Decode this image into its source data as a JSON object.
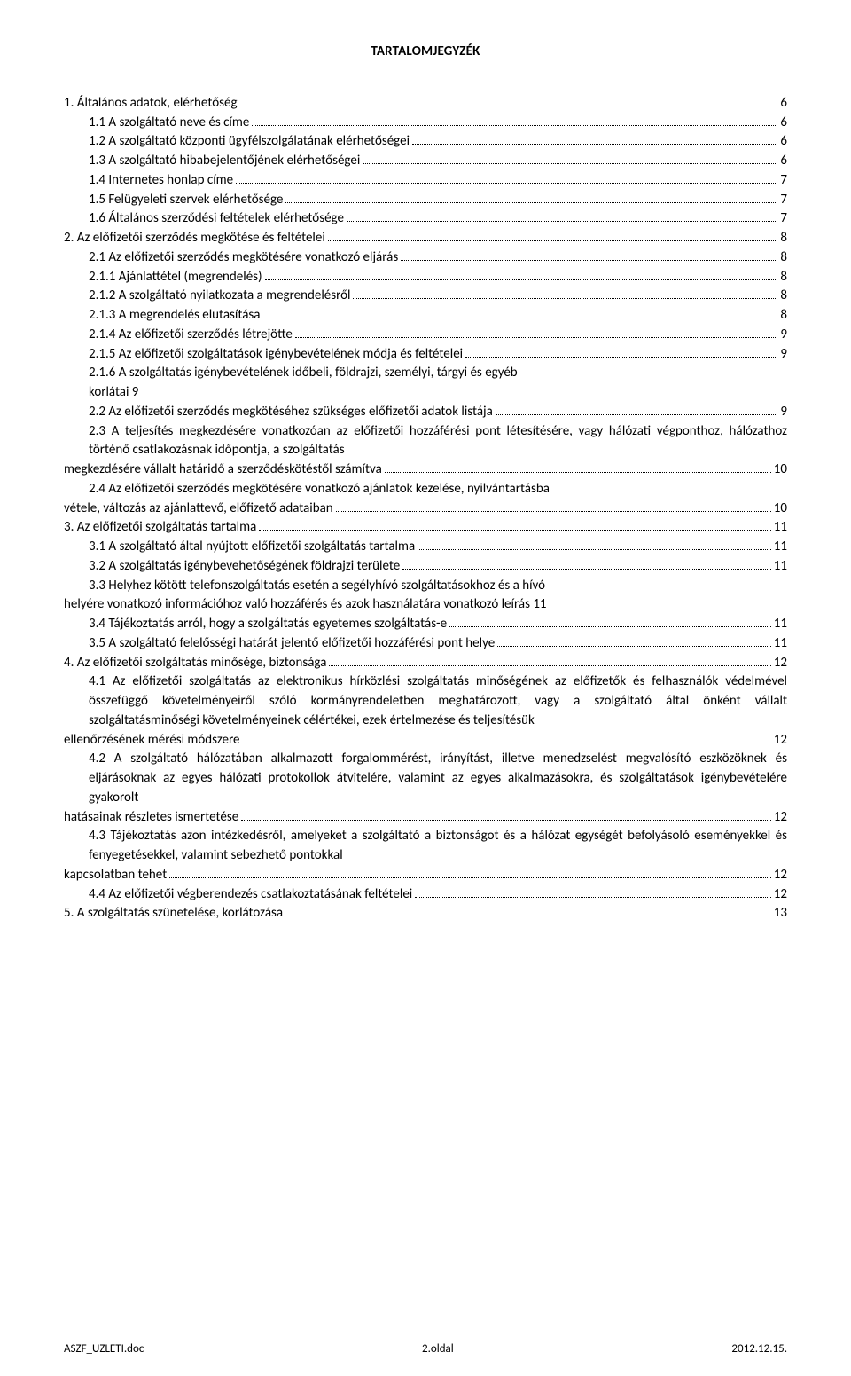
{
  "title": "TARTALOMJEGYZÉK",
  "footer": {
    "left": "ASZF_UZLETI.doc",
    "center": "2.oldal",
    "right": "2012.12.15."
  },
  "toc": [
    {
      "indent": 0,
      "text": "1. Általános adatok, elérhetőség",
      "page": "6"
    },
    {
      "indent": 1,
      "text": "1.1    A szolgáltató neve és címe",
      "page": "6"
    },
    {
      "indent": 1,
      "text": "1.2    A szolgáltató központi ügyfélszolgálatának elérhetőségei",
      "page": "6"
    },
    {
      "indent": 1,
      "text": "1.3    A szolgáltató hibabejelentőjének elérhetőségei",
      "page": "6"
    },
    {
      "indent": 1,
      "text": "1.4    Internetes honlap címe",
      "page": "7"
    },
    {
      "indent": 1,
      "text": "1.5    Felügyeleti szervek elérhetősége",
      "page": "7"
    },
    {
      "indent": 1,
      "text": "1.6    Általános szerződési feltételek elérhetősége",
      "page": "7"
    },
    {
      "indent": 0,
      "text": "2. Az előfizetői szerződés megkötése és feltételei",
      "page": "8"
    },
    {
      "indent": 1,
      "text": "2.1    Az előfizetői szerződés megkötésére vonatkozó eljárás",
      "page": "8"
    },
    {
      "indent": 2,
      "text": "2.1.1     Ajánlattétel (megrendelés)",
      "page": "8"
    },
    {
      "indent": 2,
      "text": "2.1.2     A szolgáltató nyilatkozata a megrendelésről",
      "page": "8"
    },
    {
      "indent": 2,
      "text": "2.1.3     A megrendelés elutasítása",
      "page": "8"
    },
    {
      "indent": 2,
      "text": "2.1.4     Az előfizetői szerződés létrejötte",
      "page": "9"
    },
    {
      "indent": 2,
      "text": "2.1.5     Az előfizetői szolgáltatások igénybevételének módja és feltételei",
      "page": "9"
    },
    {
      "indent": 2,
      "text": "2.1.6     A szolgáltatás igénybevételének időbeli, földrajzi, személyi, tárgyi és egyéb",
      "nowrap_tail": "korlátai   9",
      "page": null
    },
    {
      "indent": 1,
      "text": "2.2    Az előfizetői szerződés megkötéséhez szükséges előfizetői adatok listája",
      "page": "9"
    },
    {
      "indent": 1,
      "pre": "2.3    A teljesítés megkezdésére vonatkozóan az előfizetői hozzáférési pont létesítésére, vagy hálózati végponthoz, hálózathoz történő csatlakozásnak időpontja, a szolgáltatás",
      "text": "megkezdésére vállalt határidő a szerződéskötéstől számítva",
      "page": "10",
      "pre_indent": 1,
      "cont_indent": 0
    },
    {
      "indent": 1,
      "pre": "2.4    Az előfizetői szerződés megkötésére vonatkozó ajánlatok kezelése, nyilvántartásba",
      "text": "vétele, változás az ajánlattevő, előfizető adataiban",
      "page": "10",
      "pre_indent": 1,
      "cont_indent": 0
    },
    {
      "indent": 0,
      "text": "3. Az előfizetői szolgáltatás tartalma",
      "page": "11"
    },
    {
      "indent": 1,
      "text": "3.1    A szolgáltató által nyújtott előfizetői szolgáltatás tartalma",
      "page": "11"
    },
    {
      "indent": 1,
      "text": "3.2    A szolgáltatás igénybevehetőségének földrajzi területe",
      "page": "11"
    },
    {
      "indent": 1,
      "pre": "3.3    Helyhez kötött telefonszolgáltatás esetén a segélyhívó szolgáltatásokhoz és a hívó",
      "text": "helyére vonatkozó információhoz való hozzáférés és azok használatára vonatkozó leírás 11",
      "page": null,
      "pre_indent": 1,
      "cont_indent": 0
    },
    {
      "indent": 1,
      "text": "3.4    Tájékoztatás arról, hogy a szolgáltatás egyetemes szolgáltatás-e",
      "page": "11"
    },
    {
      "indent": 1,
      "text": "3.5    A szolgáltató felelősségi határát jelentő előfizetői hozzáférési pont helye",
      "page": "11"
    },
    {
      "indent": 0,
      "text": "4. Az előfizetői szolgáltatás minősége, biztonsága",
      "page": "12"
    },
    {
      "indent": 1,
      "pre": "4.1    Az előfizetői szolgáltatás az elektronikus hírközlési szolgáltatás minőségének az előfizetők és felhasználók védelmével összefüggő követelményeiről szóló kormányrendeletben meghatározott, vagy a szolgáltató által önként vállalt szolgáltatásminőségi követelményeinek célértékei, ezek értelmezése és teljesítésük",
      "text": "ellenőrzésének mérési módszere",
      "page": "12",
      "pre_indent": 1,
      "cont_indent": 0
    },
    {
      "indent": 1,
      "pre": "4.2    A szolgáltató hálózatában alkalmazott forgalommérést, irányítást, illetve menedzselést megvalósító eszközöknek és eljárásoknak az egyes hálózati protokollok átvitelére, valamint az egyes alkalmazásokra, és szolgáltatások igénybevételére gyakorolt",
      "text": "hatásainak részletes ismertetése",
      "page": "12",
      "pre_indent": 1,
      "cont_indent": 0
    },
    {
      "indent": 1,
      "pre": "4.3    Tájékoztatás azon intézkedésről, amelyeket a szolgáltató a biztonságot és a hálózat egységét befolyásoló eseményekkel és fenyegetésekkel, valamint sebezhető pontokkal",
      "text": "kapcsolatban tehet",
      "page": "12",
      "pre_indent": 1,
      "cont_indent": 0
    },
    {
      "indent": 1,
      "text": "4.4    Az előfizetői végberendezés csatlakoztatásának feltételei",
      "page": "12"
    },
    {
      "indent": 0,
      "text": "5. A szolgáltatás szünetelése, korlátozása",
      "page": "13"
    }
  ]
}
